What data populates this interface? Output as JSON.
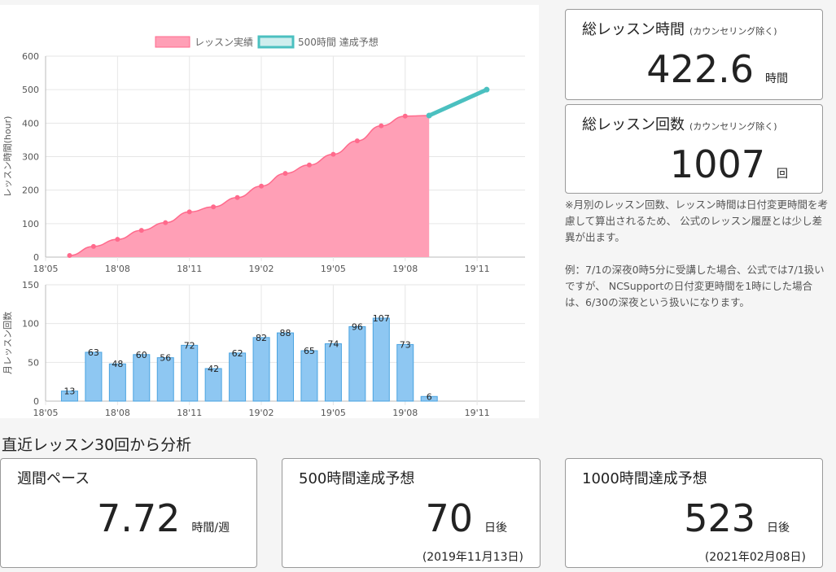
{
  "chart_data": [
    {
      "type": "area",
      "legend": [
        "レッスン実績",
        "500時間 達成予想"
      ],
      "ylabel": "レッスン時間(hour)",
      "ylim": [
        0,
        600
      ],
      "yticks": [
        "0",
        "100",
        "200",
        "300",
        "400",
        "500",
        "600"
      ],
      "xticks": [
        "18'05",
        "18'08",
        "18'11",
        "19'02",
        "19'05",
        "19'08",
        "19'11"
      ],
      "x": [
        "2018-06",
        "2018-07",
        "2018-08",
        "2018-09",
        "2018-10",
        "2018-11",
        "2018-12",
        "2019-01",
        "2019-02",
        "2019-03",
        "2019-04",
        "2019-05",
        "2019-06",
        "2019-07",
        "2019-08",
        "2019-09"
      ],
      "values": [
        5,
        32,
        53,
        80,
        103,
        135,
        150,
        178,
        212,
        250,
        275,
        307,
        347,
        392,
        421,
        422.6
      ],
      "forecast": [
        {
          "x": "2019-09",
          "y": 422.6
        },
        {
          "x": "2019-11-13",
          "y": 500
        }
      ],
      "colors": {
        "actual_fill": "#ff9fb6",
        "actual_line": "#ff6a8c",
        "forecast": "#4bc0c0"
      },
      "grid": true
    },
    {
      "type": "bar",
      "ylabel": "月レッスン回数",
      "ylim": [
        0,
        150
      ],
      "yticks": [
        "0",
        "50",
        "100",
        "150"
      ],
      "xticks": [
        "18'05",
        "18'08",
        "18'11",
        "19'02",
        "19'05",
        "19'08",
        "19'11"
      ],
      "categories": [
        "2018-06",
        "2018-07",
        "2018-08",
        "2018-09",
        "2018-10",
        "2018-11",
        "2018-12",
        "2019-01",
        "2019-02",
        "2019-03",
        "2019-04",
        "2019-05",
        "2019-06",
        "2019-07",
        "2019-08",
        "2019-09"
      ],
      "values": [
        13,
        63,
        48,
        60,
        56,
        72,
        42,
        62,
        82,
        88,
        65,
        74,
        96,
        107,
        73,
        6
      ],
      "colors": {
        "fill": "#8ec7f2",
        "border": "#4aa3e0"
      },
      "grid": true
    }
  ],
  "cards": {
    "total_hours": {
      "title": "総レッスン時間",
      "note": "(カウンセリング除く)",
      "value": "422.6",
      "unit": "時間"
    },
    "total_count": {
      "title": "総レッスン回数",
      "note": "(カウンセリング除く)",
      "value": "1007",
      "unit": "回"
    },
    "weekly_pace": {
      "title": "週間ペース",
      "value": "7.72",
      "unit": "時間/週"
    },
    "forecast_500": {
      "title": "500時間達成予想",
      "value": "70",
      "unit": "日後",
      "date": "(2019年11月13日)"
    },
    "forecast_1000": {
      "title": "1000時間達成予想",
      "value": "523",
      "unit": "日後",
      "date": "(2021年02月08日)"
    }
  },
  "notes": [
    "※月別のレッスン回数、レッスン時間は日付変更時間を考慮して算出されるため、 公式のレッスン履歴とは少し差異が出ます。",
    "例：7/1の深夜0時5分に受講した場合、公式では7/1扱いですが、 NCSupportの日付変更時間を1時にした場合は、6/30の深夜という扱いになります。"
  ],
  "section_title": "直近レッスン30回から分析"
}
